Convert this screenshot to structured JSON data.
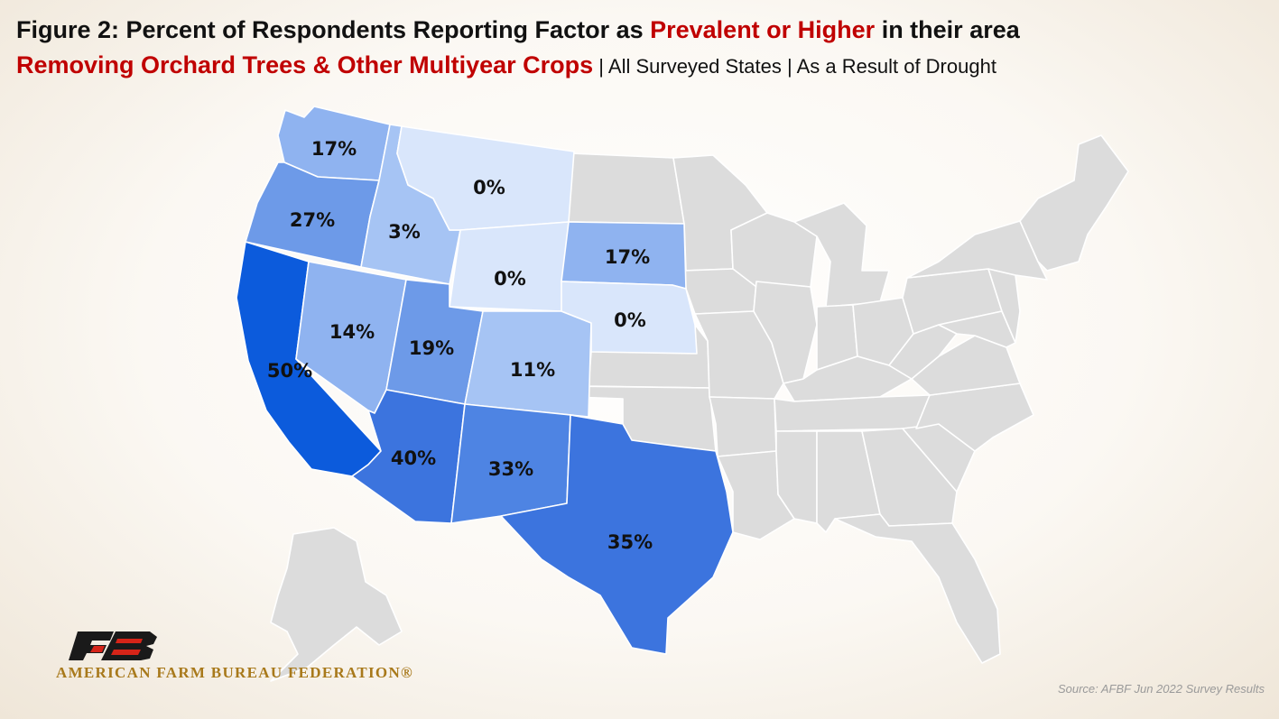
{
  "title": {
    "line1_prefix": "Figure 2: Percent of Respondents Reporting Factor as ",
    "line1_highlight": "Prevalent or Higher",
    "line1_suffix": " in their area",
    "line2_highlight": "Removing Orchard Trees & Other Multiyear Crops",
    "line2_suffix": " | All Surveyed States | As a Result of Drought"
  },
  "colors": {
    "highlight": "#c00000",
    "scale": [
      "#d9e6fb",
      "#a6c4f4",
      "#8fb3f0",
      "#6d9ae8",
      "#4e84e3",
      "#3c74de",
      "#0c5bdc"
    ],
    "no_data": "#dcdcdc"
  },
  "states": [
    {
      "id": "WA",
      "value": 17,
      "label": "17%"
    },
    {
      "id": "OR",
      "value": 27,
      "label": "27%"
    },
    {
      "id": "CA",
      "value": 50,
      "label": "50%"
    },
    {
      "id": "ID",
      "value": 3,
      "label": "3%"
    },
    {
      "id": "NV",
      "value": 14,
      "label": "14%"
    },
    {
      "id": "MT",
      "value": 0,
      "label": "0%"
    },
    {
      "id": "WY",
      "value": 0,
      "label": "0%"
    },
    {
      "id": "UT",
      "value": 19,
      "label": "19%"
    },
    {
      "id": "CO",
      "value": 11,
      "label": "11%"
    },
    {
      "id": "AZ",
      "value": 40,
      "label": "40%"
    },
    {
      "id": "NM",
      "value": 33,
      "label": "33%"
    },
    {
      "id": "SD",
      "value": 17,
      "label": "17%"
    },
    {
      "id": "NE",
      "value": 0,
      "label": "0%"
    },
    {
      "id": "TX",
      "value": 35,
      "label": "35%"
    }
  ],
  "logo": {
    "mark": "FB",
    "name": "AMERICAN FARM BUREAU FEDERATION®"
  },
  "source": "Source: AFBF Jun 2022 Survey Results"
}
